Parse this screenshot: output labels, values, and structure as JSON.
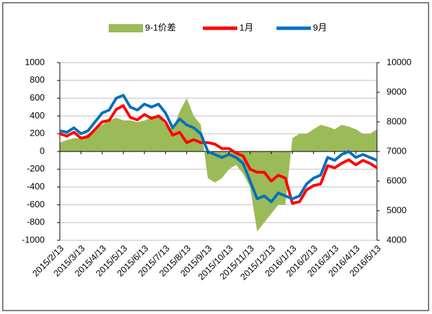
{
  "chart_data": {
    "type": "line",
    "categories": [
      "2015/2/13",
      null,
      null,
      "2015/3/13",
      null,
      null,
      "2015/4/13",
      null,
      null,
      "2015/5/13",
      null,
      null,
      "2015/6/13",
      null,
      null,
      "2015/7/13",
      null,
      null,
      "2015/8/13",
      null,
      null,
      "2015/9/13",
      null,
      null,
      "2015/10/13",
      null,
      null,
      "2015/11/13",
      null,
      null,
      "2015/12/13",
      null,
      null,
      "2016/1/13",
      null,
      null,
      "2016/2/13",
      null,
      null,
      "2016/3/13",
      null,
      null,
      "2016/4/13",
      null,
      null,
      "2016/5/13"
    ],
    "series": [
      {
        "name": "9-1价差",
        "type": "area",
        "color": "#9bbb59",
        "axis": "y",
        "values": [
          100,
          130,
          150,
          150,
          200,
          250,
          300,
          350,
          380,
          350,
          350,
          330,
          350,
          380,
          400,
          300,
          250,
          450,
          600,
          400,
          300,
          -300,
          -350,
          -300,
          -200,
          -150,
          -250,
          -400,
          -900,
          -800,
          -700,
          -600,
          -600,
          150,
          200,
          200,
          250,
          300,
          280,
          250,
          300,
          280,
          250,
          200,
          200,
          250
        ]
      },
      {
        "name": "1月",
        "type": "line",
        "color": "#ff0000",
        "axis": "y2",
        "values": [
          7600,
          7520,
          7650,
          7450,
          7500,
          7750,
          8000,
          8050,
          8420,
          8550,
          8150,
          8070,
          8250,
          8120,
          8200,
          8000,
          7550,
          7650,
          7300,
          7400,
          7300,
          7300,
          7250,
          7100,
          7100,
          6950,
          6850,
          6400,
          6300,
          6300,
          6000,
          6200,
          6100,
          5250,
          5300,
          5700,
          5850,
          5900,
          6520,
          6450,
          6600,
          6720,
          6550,
          6700,
          6600,
          6450
        ]
      },
      {
        "name": "9月",
        "type": "line",
        "color": "#0070c0",
        "axis": "y2",
        "values": [
          7700,
          7650,
          7800,
          7600,
          7700,
          8000,
          8300,
          8400,
          8800,
          8900,
          8500,
          8400,
          8600,
          8500,
          8600,
          8300,
          7800,
          8100,
          7900,
          7800,
          7600,
          7000,
          6900,
          6800,
          6900,
          6800,
          6600,
          6000,
          5400,
          5500,
          5300,
          5600,
          5500,
          5400,
          5500,
          5900,
          6100,
          6200,
          6800,
          6700,
          6900,
          7000,
          6800,
          6900,
          6800,
          6700
        ]
      }
    ],
    "ylim": [
      -1000,
      1000
    ],
    "yticks": [
      -1000,
      -800,
      -600,
      -400,
      -200,
      0,
      200,
      400,
      600,
      800,
      1000
    ],
    "y2lim": [
      4000,
      10000
    ],
    "y2ticks": [
      4000,
      5000,
      6000,
      7000,
      8000,
      9000,
      10000
    ],
    "grid": true,
    "legend": "top",
    "negative_tick_color": "#ff0000"
  }
}
